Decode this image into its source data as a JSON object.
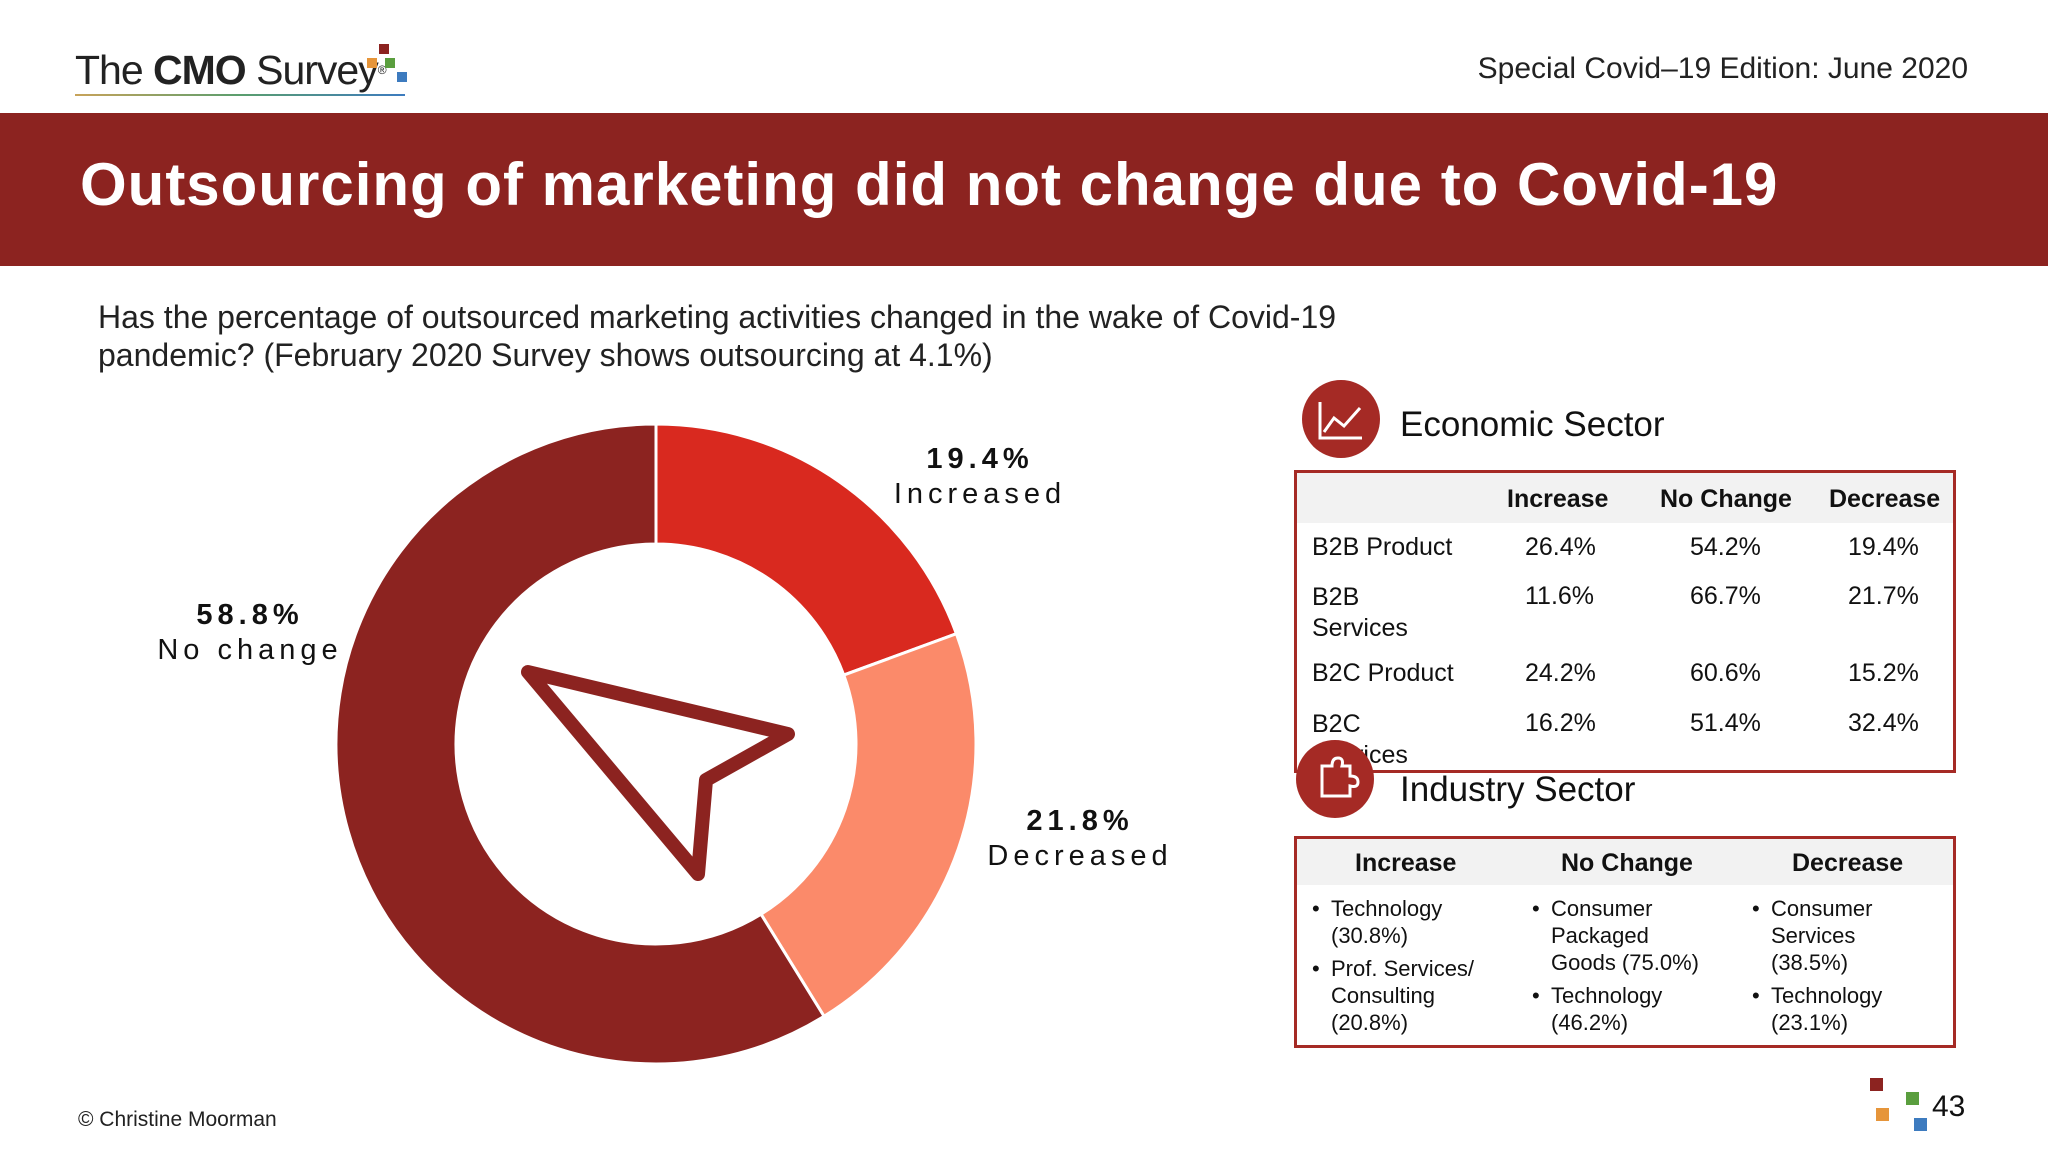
{
  "header": {
    "logo": {
      "text_light": "The ",
      "text_bold": "CMO",
      "text_tail": " Survey",
      "reg": "®"
    },
    "edition": "Special Covid–19 Edition: June 2020"
  },
  "title": "Outsourcing of marketing did not change due to Covid-19",
  "question": "Has the percentage of outsourced marketing activities changed in the wake of Covid-19 pandemic? (February 2020 Survey shows outsourcing at 4.1%)",
  "chart_data": {
    "type": "pie",
    "donut": true,
    "slices": [
      {
        "label": "Increased",
        "value": 19.4,
        "value_label": "19.4%",
        "color": "#d9291f"
      },
      {
        "label": "Decreased",
        "value": 21.8,
        "value_label": "21.8%",
        "color": "#fb8a6a"
      },
      {
        "label": "No change",
        "value": 58.8,
        "value_label": "58.8%",
        "color": "#8c2320"
      }
    ],
    "center_icon": "cursor-arrow-icon"
  },
  "economic": {
    "title": "Economic Sector",
    "icon": "line-chart-icon",
    "headers": [
      "Increase",
      "No Change",
      "Decrease"
    ],
    "rows": [
      {
        "name": "B2B Product",
        "values": [
          "26.4%",
          "54.2%",
          "19.4%"
        ]
      },
      {
        "name": "B2B Services",
        "values": [
          "11.6%",
          "66.7%",
          "21.7%"
        ]
      },
      {
        "name": "B2C Product",
        "values": [
          "24.2%",
          "60.6%",
          "15.2%"
        ]
      },
      {
        "name": "B2C Services",
        "values": [
          "16.2%",
          "51.4%",
          "32.4%"
        ]
      }
    ]
  },
  "industry": {
    "title": "Industry Sector",
    "icon": "puzzle-icon",
    "headers": [
      "Increase",
      "No Change",
      "Decrease"
    ],
    "columns": [
      [
        "Technology (30.8%)",
        "Prof. Services/ Consulting (20.8%)"
      ],
      [
        "Consumer Packaged Goods (75.0%)",
        "Technology (46.2%)"
      ],
      [
        "Consumer Services (38.5%)",
        "Technology (23.1%)"
      ]
    ]
  },
  "footer": {
    "copyright": "© Christine Moorman",
    "page": "43"
  },
  "colors": {
    "brand": "#8c2320",
    "accent": "#a52a25",
    "increase": "#d9291f",
    "decrease": "#fb8a6a"
  }
}
